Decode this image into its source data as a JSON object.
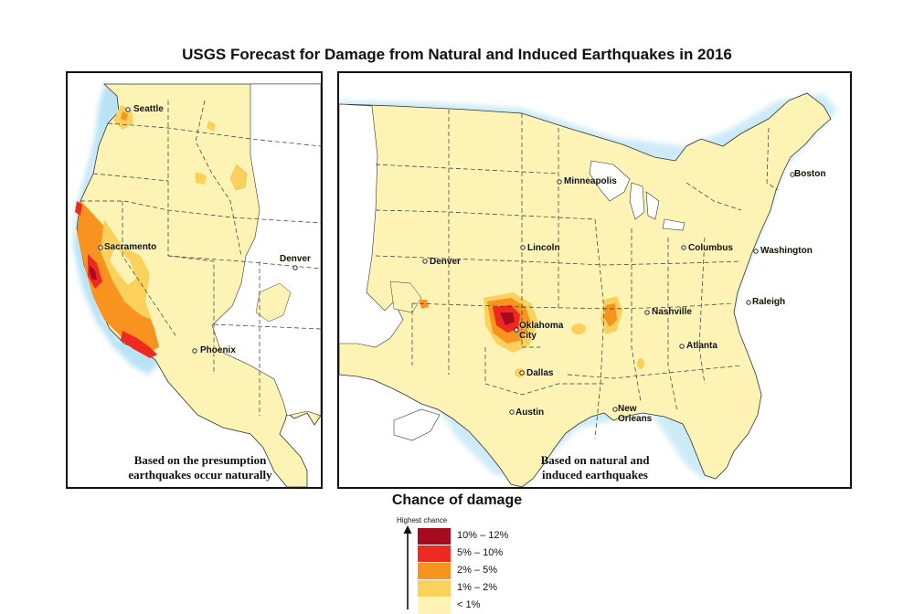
{
  "title": "USGS Forecast for Damage from Natural and Induced Earthquakes in 2016",
  "panels": {
    "west": {
      "caption_line1": "Based on the presumption",
      "caption_line2": "earthquakes occur naturally",
      "cities": [
        "Seattle",
        "Sacramento",
        "Denver",
        "Phoenix"
      ]
    },
    "us": {
      "caption_line1": "Based on natural and",
      "caption_line2": "induced earthquakes",
      "cities": [
        "Minneapolis",
        "Boston",
        "Lincoln",
        "Columbus",
        "Washington",
        "Denver",
        "Raleigh",
        "Nashville",
        "Oklahoma",
        "City",
        "Atlanta",
        "Dallas",
        "New",
        "Orleans",
        "Austin"
      ]
    }
  },
  "legend": {
    "title": "Chance of damage",
    "arrow_label": "Highest chance",
    "items": [
      {
        "label": "10% – 12%",
        "color": "#a50a1e"
      },
      {
        "label": "5% – 10%",
        "color": "#ee2a20"
      },
      {
        "label": "2% – 5%",
        "color": "#f7931e"
      },
      {
        "label": "1% – 2%",
        "color": "#fbd15b"
      },
      {
        "label": "< 1%",
        "color": "#fdf3b5"
      }
    ]
  },
  "colors": {
    "lowest": "#fdf3b5",
    "low": "#fbd15b",
    "medium": "#f7931e",
    "high": "#ee2a20",
    "highest": "#a50a1e",
    "water_glow": "#b9e3f5"
  }
}
